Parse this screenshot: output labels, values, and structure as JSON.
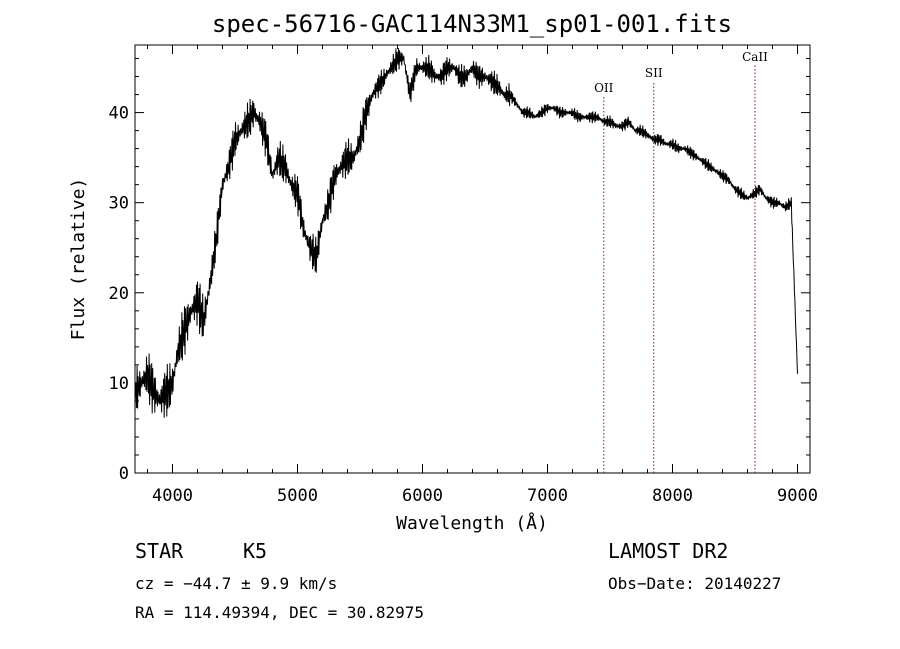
{
  "chart_data": {
    "type": "line",
    "title": "spec-56716-GAC114N33M1_sp01-001.fits",
    "xlabel": "Wavelength (Å)",
    "ylabel": "Flux (relative)",
    "xlim": [
      3700,
      9100
    ],
    "ylim": [
      0,
      47.5
    ],
    "xticks": [
      4000,
      5000,
      6000,
      7000,
      8000,
      9000
    ],
    "yticks": [
      0,
      10,
      20,
      30,
      40
    ],
    "grid": false,
    "series": [
      {
        "x": [
          3700,
          3750,
          3800,
          3850,
          3900,
          3950,
          4000,
          4050,
          4100,
          4150,
          4200,
          4250,
          4300,
          4350,
          4400,
          4450,
          4500,
          4550,
          4600,
          4650,
          4700,
          4750,
          4800,
          4850,
          4900,
          4950,
          5000,
          5050,
          5100,
          5150,
          5200,
          5250,
          5300,
          5350,
          5400,
          5450,
          5500,
          5550,
          5600,
          5650,
          5700,
          5750,
          5800,
          5850,
          5900,
          5950,
          6000,
          6050,
          6100,
          6150,
          6200,
          6250,
          6300,
          6350,
          6400,
          6450,
          6500,
          6550,
          6600,
          6650,
          6700,
          6750,
          6800,
          6850,
          6900,
          6950,
          7000,
          7050,
          7100,
          7150,
          7200,
          7250,
          7300,
          7350,
          7400,
          7450,
          7500,
          7550,
          7600,
          7650,
          7700,
          7750,
          7800,
          7850,
          7900,
          7950,
          8000,
          8050,
          8100,
          8150,
          8200,
          8250,
          8300,
          8350,
          8400,
          8450,
          8500,
          8550,
          8600,
          8650,
          8700,
          8750,
          8800,
          8850,
          8900,
          8950,
          9000
        ],
        "values": [
          9,
          10,
          11,
          9,
          8,
          9,
          10,
          14,
          16,
          18,
          19,
          17,
          21,
          26,
          32,
          34,
          37,
          38,
          39,
          40,
          39,
          37,
          33,
          35,
          34,
          32,
          31,
          27,
          25,
          24,
          28,
          30,
          33,
          34,
          35,
          35,
          37,
          40,
          42,
          43,
          44,
          45,
          46,
          46,
          42,
          45,
          45,
          45,
          44,
          44,
          45,
          45,
          44,
          44,
          45,
          44,
          44,
          43.5,
          43,
          42,
          42,
          41,
          40,
          40,
          39.5,
          40,
          40.5,
          40.5,
          40,
          40,
          40,
          39.5,
          39.5,
          39.5,
          39.5,
          39,
          39,
          38.5,
          38.5,
          39,
          38,
          38,
          37.5,
          37,
          37,
          36.5,
          36.5,
          36,
          36,
          35.5,
          35,
          34.5,
          34,
          33.5,
          33,
          32.5,
          31.5,
          31,
          30.5,
          31,
          31.5,
          30.5,
          30,
          30,
          29.5,
          30,
          11
        ]
      }
    ],
    "line_markers": [
      {
        "label": "OII",
        "x": 7450
      },
      {
        "label": "SII",
        "x": 7850
      },
      {
        "label": "CaII",
        "x": 8660
      }
    ],
    "marker_color": "#8b1a1a",
    "line_color": "#000000"
  },
  "info": {
    "object_class": "STAR",
    "subclass": "K5",
    "cz": "cz = −44.7 ± 9.9 km/s",
    "coords": "RA = 114.49394, DEC =  30.82975",
    "survey": "LAMOST DR2",
    "obs_date": "Obs−Date: 20140227"
  }
}
